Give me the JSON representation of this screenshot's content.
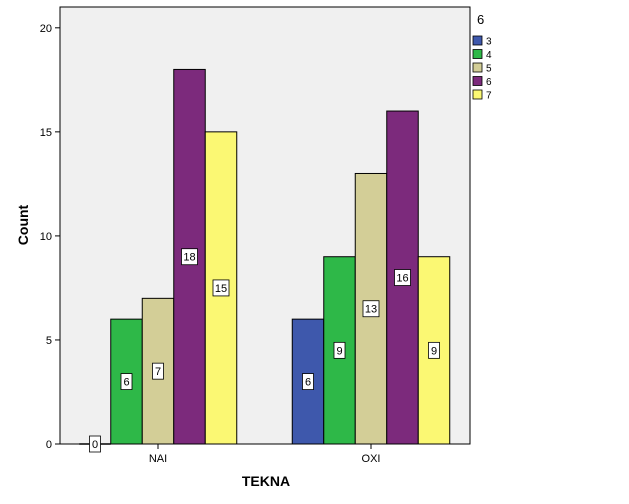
{
  "chart_data": {
    "type": "bar",
    "title": "",
    "xlabel": "TEKNA",
    "ylabel": "Count",
    "ylim": [
      0,
      21
    ],
    "yticks": [
      "0",
      "5",
      "10",
      "15",
      "20"
    ],
    "categories": [
      "NAI",
      "OXI"
    ],
    "legend_title": "6",
    "legend_position": "right",
    "series": [
      {
        "name": "3",
        "color": "#3e58ac",
        "values": [
          0,
          6
        ]
      },
      {
        "name": "4",
        "color": "#2eb848",
        "values": [
          6,
          9
        ]
      },
      {
        "name": "5",
        "color": "#d3ce97",
        "values": [
          7,
          13
        ]
      },
      {
        "name": "6",
        "color": "#7c2a7c",
        "values": [
          18,
          16
        ]
      },
      {
        "name": "7",
        "color": "#fbf873",
        "values": [
          15,
          9
        ]
      }
    ],
    "data_labels": [
      [
        "0",
        "6"
      ],
      [
        "6",
        "9"
      ],
      [
        "7",
        "13"
      ],
      [
        "18",
        "16"
      ],
      [
        "15",
        "9"
      ]
    ]
  }
}
